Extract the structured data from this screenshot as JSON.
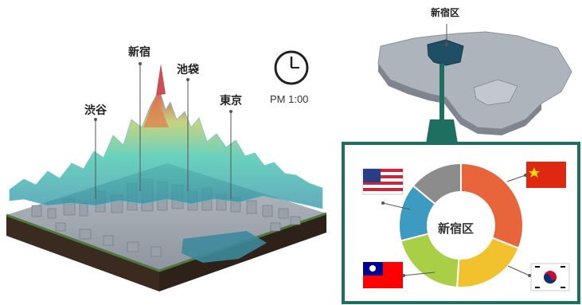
{
  "labels": {
    "shibuya": "渋谷",
    "shinjuku": "新宿",
    "ikebukuro": "池袋",
    "tokyo": "東京"
  },
  "clock": {
    "time": "PM 1:00",
    "icon": "clock-icon"
  },
  "map": {
    "ward_label": "新宿区"
  },
  "panel": {
    "center_label": "新宿区",
    "border_color": "#1f6f60",
    "flags": [
      "usa-flag-icon",
      "china-flag-icon",
      "taiwan-flag-icon",
      "korea-flag-icon"
    ]
  },
  "chart_data": {
    "type": "pie",
    "donut": true,
    "center_label": "新宿区",
    "slices": [
      {
        "value": 31,
        "color": "#e8653b",
        "icon": "china-flag-icon"
      },
      {
        "value": 20,
        "color": "#f2c12e",
        "icon": "korea-flag-icon"
      },
      {
        "value": 20,
        "color": "#a8cf45",
        "icon": "taiwan-flag-icon"
      },
      {
        "value": 15,
        "color": "#3d9bc1",
        "icon": "usa-flag-icon"
      },
      {
        "value": 14,
        "color": "#8c8c8c"
      }
    ]
  }
}
